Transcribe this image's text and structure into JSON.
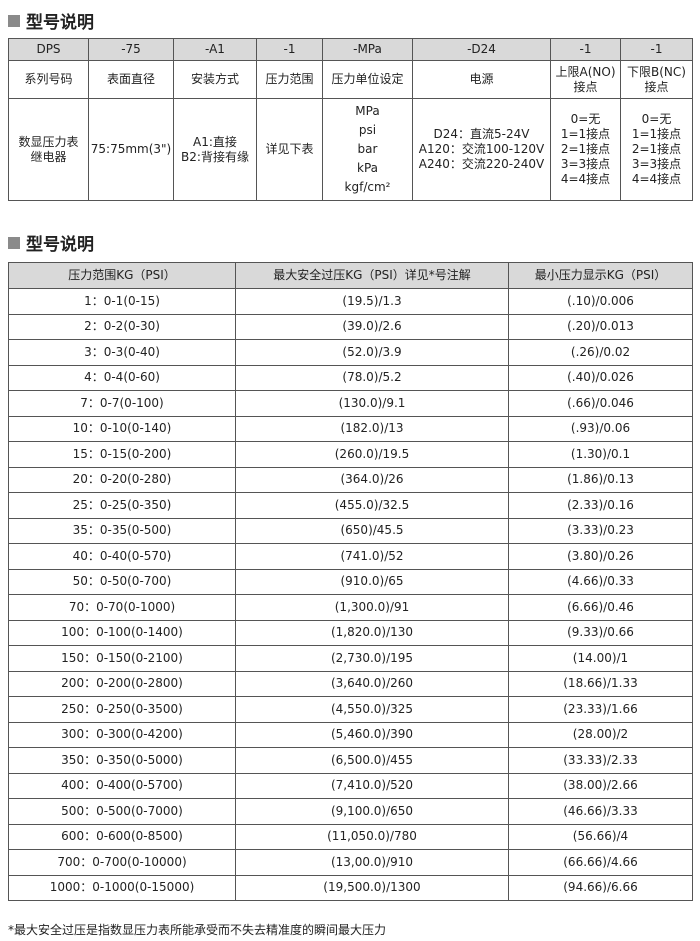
{
  "section1": {
    "title": "型号说明"
  },
  "model_table": {
    "codes": [
      "DPS",
      "-75",
      "-A1",
      "-1",
      "-MPa",
      "-D24",
      "-1",
      "-1"
    ],
    "labels": [
      "系列号码",
      "表面直径",
      "安装方式",
      "压力范围",
      "压力单位设定",
      "电源",
      "上限A(NO)\n接点",
      "下限B(NC)\n接点"
    ],
    "values": [
      [
        "数显压力表",
        "继电器"
      ],
      [
        "75:75mm(3\")"
      ],
      [
        "A1:直接",
        "B2:背接有缘"
      ],
      [
        "详见下表"
      ],
      [
        "MPa",
        "psi",
        "bar",
        "kPa",
        "kgf/cm²"
      ],
      [
        "D24：直流5-24V",
        "A120：交流100-120V",
        "A240：交流220-240V"
      ],
      [
        "0=无",
        "1=1接点",
        "2=1接点",
        "3=3接点",
        "4=4接点"
      ],
      [
        "0=无",
        "1=1接点",
        "2=1接点",
        "3=3接点",
        "4=4接点"
      ]
    ]
  },
  "section2": {
    "title": "型号说明"
  },
  "pressure_table": {
    "headers": [
      "压力范围KG（PSI）",
      "最大安全过压KG（PSI）详见*号注解",
      "最小压力显示KG（PSI）"
    ],
    "rows": [
      [
        "1：0-1(0-15)",
        "(19.5)/1.3",
        "(.10)/0.006"
      ],
      [
        "2：0-2(0-30)",
        "(39.0)/2.6",
        "(.20)/0.013"
      ],
      [
        "3：0-3(0-40)",
        "(52.0)/3.9",
        "(.26)/0.02"
      ],
      [
        "4：0-4(0-60)",
        "(78.0)/5.2",
        "(.40)/0.026"
      ],
      [
        "7：0-7(0-100)",
        "(130.0)/9.1",
        "(.66)/0.046"
      ],
      [
        "10：0-10(0-140)",
        "(182.0)/13",
        "(.93)/0.06"
      ],
      [
        "15：0-15(0-200)",
        "(260.0)/19.5",
        "(1.30)/0.1"
      ],
      [
        "20：0-20(0-280)",
        "(364.0)/26",
        "(1.86)/0.13"
      ],
      [
        "25：0-25(0-350)",
        "(455.0)/32.5",
        "(2.33)/0.16"
      ],
      [
        "35：0-35(0-500)",
        "(650)/45.5",
        "(3.33)/0.23"
      ],
      [
        "40：0-40(0-570)",
        "(741.0)/52",
        "(3.80)/0.26"
      ],
      [
        "50：0-50(0-700)",
        "(910.0)/65",
        "(4.66)/0.33"
      ],
      [
        "70：0-70(0-1000)",
        "(1,300.0)/91",
        "(6.66)/0.46"
      ],
      [
        "100：0-100(0-1400)",
        "(1,820.0)/130",
        "(9.33)/0.66"
      ],
      [
        "150：0-150(0-2100)",
        "(2,730.0)/195",
        "(14.00)/1"
      ],
      [
        "200：0-200(0-2800)",
        "(3,640.0)/260",
        "(18.66)/1.33"
      ],
      [
        "250：0-250(0-3500)",
        "(4,550.0)/325",
        "(23.33)/1.66"
      ],
      [
        "300：0-300(0-4200)",
        "(5,460.0)/390",
        "(28.00)/2"
      ],
      [
        "350：0-350(0-5000)",
        "(6,500.0)/455",
        "(33.33)/2.33"
      ],
      [
        "400：0-400(0-5700)",
        "(7,410.0)/520",
        "(38.00)/2.66"
      ],
      [
        "500：0-500(0-7000)",
        "(9,100.0)/650",
        "(46.66)/3.33"
      ],
      [
        "600：0-600(0-8500)",
        "(11,050.0)/780",
        "(56.66)/4"
      ],
      [
        "700：0-700(0-10000)",
        "(13,00.0)/910",
        "(66.66)/4.66"
      ],
      [
        "1000：0-1000(0-15000)",
        "(19,500.0)/1300",
        "(94.66)/6.66"
      ]
    ]
  },
  "footnote": "*最大安全过压是指数显压力表所能承受而不失去精准度的瞬间最大压力"
}
